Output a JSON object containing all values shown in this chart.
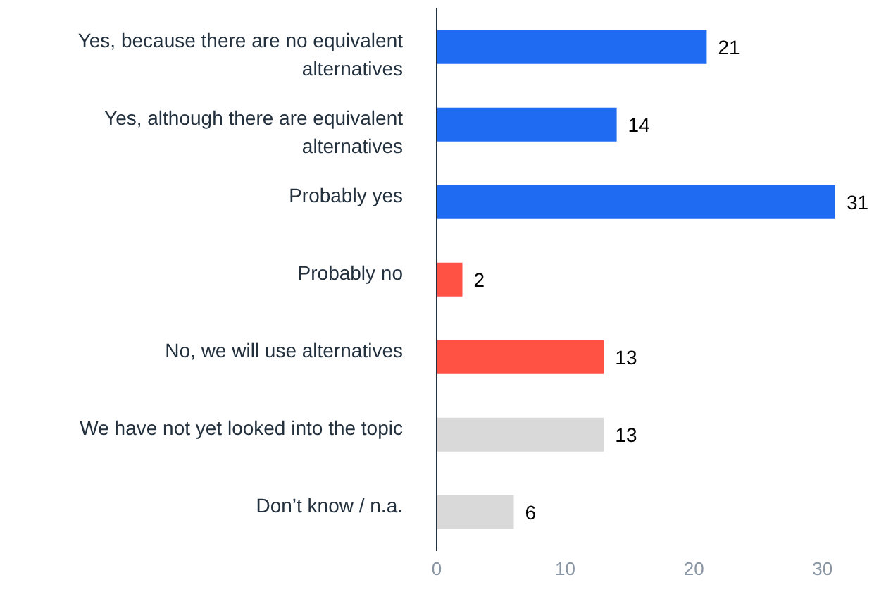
{
  "chart_data": {
    "type": "bar",
    "orientation": "horizontal",
    "categories": [
      "Yes, because there are no equivalent alternatives",
      "Yes, although there are equivalent alternatives",
      "Probably yes",
      "Probably no",
      "No, we will use alternatives",
      "We have not yet looked into the topic",
      "Don’t know / n.a."
    ],
    "values": [
      21,
      14,
      31,
      2,
      13,
      13,
      6
    ],
    "colors": [
      "#1f6cf3",
      "#1f6cf3",
      "#1f6cf3",
      "#ff5245",
      "#ff5245",
      "#d9d9d9",
      "#d9d9d9"
    ],
    "xlim": [
      0,
      31
    ],
    "xticks": [
      0,
      10,
      20,
      30
    ],
    "data_labels": true,
    "grid": false
  }
}
